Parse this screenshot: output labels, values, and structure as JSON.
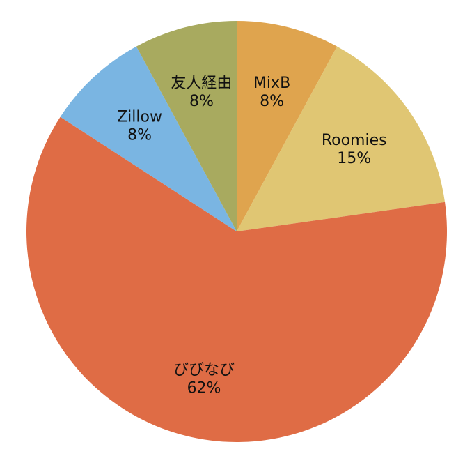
{
  "chart_data": {
    "type": "pie",
    "categories": [
      "MixB",
      "Roomies",
      "びびなび",
      "Zillow",
      "友人経由"
    ],
    "values": [
      8,
      15,
      62,
      8,
      8
    ],
    "value_labels": [
      "8%",
      "15%",
      "62%",
      "8%",
      "8%"
    ],
    "colors": [
      "#dfa44e",
      "#e0c673",
      "#df6c45",
      "#7ab5e2",
      "#a8aa5f"
    ]
  }
}
